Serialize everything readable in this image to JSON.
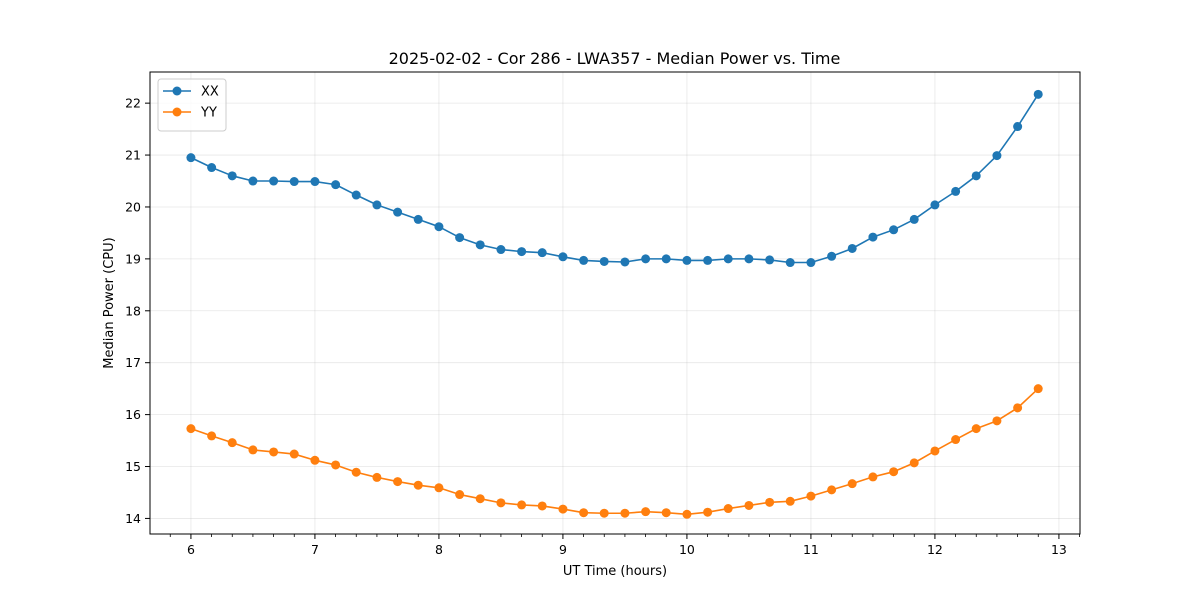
{
  "chart_data": {
    "type": "line",
    "title": "2025-02-02 - Cor 286 - LWA357 - Median Power vs. Time",
    "xlabel": "UT Time (hours)",
    "ylabel": "Median Power (CPU)",
    "xlim": [
      5.67,
      13.17
    ],
    "ylim": [
      13.7,
      22.6
    ],
    "xticks": [
      6,
      7,
      8,
      9,
      10,
      11,
      12,
      13
    ],
    "yticks": [
      14,
      15,
      16,
      17,
      18,
      19,
      20,
      21,
      22
    ],
    "grid": true,
    "legend_position": "top-left",
    "x": [
      6.0,
      6.167,
      6.333,
      6.5,
      6.667,
      6.833,
      7.0,
      7.167,
      7.333,
      7.5,
      7.667,
      7.833,
      8.0,
      8.167,
      8.333,
      8.5,
      8.667,
      8.833,
      9.0,
      9.167,
      9.333,
      9.5,
      9.667,
      9.833,
      10.0,
      10.167,
      10.333,
      10.5,
      10.667,
      10.833,
      11.0,
      11.167,
      11.333,
      11.5,
      11.667,
      11.833,
      12.0,
      12.167,
      12.333,
      12.5,
      12.667,
      12.833
    ],
    "series": [
      {
        "name": "XX",
        "color": "#1f77b4",
        "values": [
          20.95,
          20.76,
          20.6,
          20.5,
          20.5,
          20.49,
          20.49,
          20.43,
          20.23,
          20.04,
          19.9,
          19.76,
          19.62,
          19.41,
          19.27,
          19.18,
          19.14,
          19.12,
          19.04,
          18.97,
          18.95,
          18.94,
          19.0,
          19.0,
          18.97,
          18.97,
          19.0,
          19.0,
          18.98,
          18.93,
          18.93,
          19.05,
          19.2,
          19.42,
          19.56,
          19.76,
          20.04,
          20.3,
          20.6,
          20.99,
          21.55,
          22.17
        ]
      },
      {
        "name": "YY",
        "color": "#ff7f0e",
        "values": [
          15.73,
          15.59,
          15.46,
          15.32,
          15.28,
          15.24,
          15.12,
          15.03,
          14.89,
          14.79,
          14.71,
          14.64,
          14.59,
          14.46,
          14.38,
          14.3,
          14.26,
          14.24,
          14.18,
          14.11,
          14.1,
          14.1,
          14.13,
          14.11,
          14.08,
          14.12,
          14.19,
          14.25,
          14.31,
          14.33,
          14.43,
          14.55,
          14.67,
          14.8,
          14.9,
          15.07,
          15.3,
          15.52,
          15.73,
          15.88,
          16.13,
          16.5
        ]
      }
    ]
  }
}
